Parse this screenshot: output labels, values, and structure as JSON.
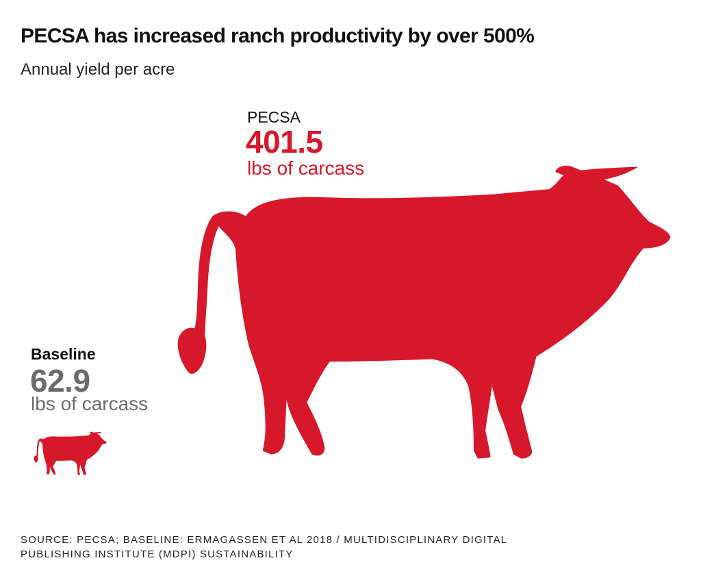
{
  "title": "PECSA has increased ranch productivity by over 500%",
  "subtitle": "Annual yield per acre",
  "chart_data": {
    "type": "pictograph",
    "unit": "lbs of carcass",
    "items": [
      {
        "label": "PECSA",
        "value": 401.5,
        "value_text": "401.5",
        "unit": "lbs of carcass",
        "color": "#d7182a",
        "icon": "cow-icon"
      },
      {
        "label": "Baseline",
        "value": 62.9,
        "value_text": "62.9",
        "unit": "lbs of carcass",
        "color": "#6b6b6b",
        "icon": "cow-icon"
      }
    ]
  },
  "source": {
    "line1": "SOURCE: PECSA; BASELINE: ERMAGASSEN ET AL 2018 / MULTIDISCIPLINARY DIGITAL",
    "line2": "PUBLISHING INSTITUTE (MDPI) SUSTAINABILITY"
  }
}
